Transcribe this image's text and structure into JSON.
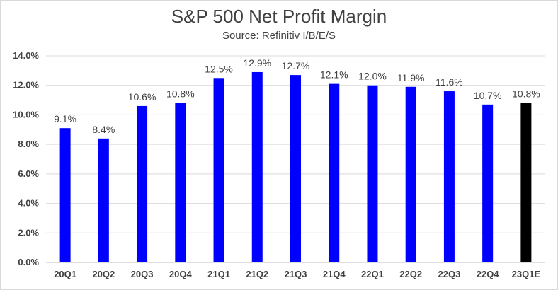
{
  "chart_data": {
    "type": "bar",
    "title": "S&P 500 Net Profit Margin",
    "subtitle": "Source: Refinitiv I/B/E/S",
    "xlabel": "",
    "ylabel": "",
    "categories": [
      "20Q1",
      "20Q2",
      "20Q3",
      "20Q4",
      "21Q1",
      "21Q2",
      "21Q3",
      "21Q4",
      "22Q1",
      "22Q2",
      "22Q3",
      "22Q4",
      "23Q1E"
    ],
    "values": [
      9.1,
      8.4,
      10.6,
      10.8,
      12.5,
      12.9,
      12.7,
      12.1,
      12.0,
      11.9,
      11.6,
      10.7,
      10.8
    ],
    "data_labels": [
      "9.1%",
      "8.4%",
      "10.6%",
      "10.8%",
      "12.5%",
      "12.9%",
      "12.7%",
      "12.1%",
      "12.0%",
      "11.9%",
      "11.6%",
      "10.7%",
      "10.8%"
    ],
    "bar_colors": [
      "#0000ff",
      "#0000ff",
      "#0000ff",
      "#0000ff",
      "#0000ff",
      "#0000ff",
      "#0000ff",
      "#0000ff",
      "#0000ff",
      "#0000ff",
      "#0000ff",
      "#0000ff",
      "#000000"
    ],
    "ylim": [
      0,
      14
    ],
    "yticks": [
      0,
      2,
      4,
      6,
      8,
      10,
      12,
      14
    ],
    "ytick_labels": [
      "0.0%",
      "2.0%",
      "4.0%",
      "6.0%",
      "8.0%",
      "10.0%",
      "12.0%",
      "14.0%"
    ],
    "grid": true,
    "legend": "none"
  }
}
